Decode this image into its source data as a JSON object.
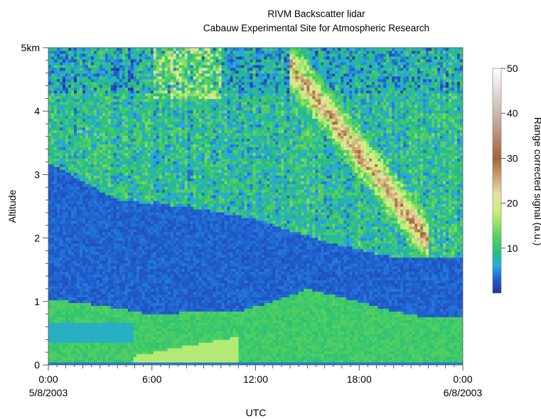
{
  "chart_data": {
    "type": "heatmap",
    "title": "RIVM Backscatter lidar",
    "subtitle": "Cabauw Experimental Site for Atmospheric Research",
    "xlabel": "UTC",
    "ylabel": "Altitude",
    "x_unit": "hours",
    "xlim": [
      0,
      24
    ],
    "ylim": [
      0,
      5
    ],
    "x_ticks": [
      {
        "value": 0,
        "label": "0:00",
        "sublabel": "5/8/2003"
      },
      {
        "value": 6,
        "label": "6:00",
        "sublabel": ""
      },
      {
        "value": 12,
        "label": "12:00",
        "sublabel": ""
      },
      {
        "value": 18,
        "label": "18:00",
        "sublabel": ""
      },
      {
        "value": 24,
        "label": "0:00",
        "sublabel": "6/8/2003"
      }
    ],
    "y_ticks": [
      {
        "value": 0,
        "label": "0"
      },
      {
        "value": 1,
        "label": "1"
      },
      {
        "value": 2,
        "label": "2"
      },
      {
        "value": 3,
        "label": "3"
      },
      {
        "value": 4,
        "label": "4"
      },
      {
        "value": 5,
        "label": "5km"
      }
    ],
    "colorbar": {
      "label": "Range corrected signal (a.u.)",
      "range": [
        0,
        50
      ],
      "ticks": [
        {
          "value": 10,
          "label": "10"
        },
        {
          "value": 20,
          "label": "20"
        },
        {
          "value": 30,
          "label": "30"
        },
        {
          "value": 40,
          "label": "40"
        },
        {
          "value": 50,
          "label": "50"
        }
      ],
      "colormap": [
        {
          "value": 0,
          "color": "#2a2f96"
        },
        {
          "value": 3,
          "color": "#1f5fd0"
        },
        {
          "value": 6,
          "color": "#2aa7e8"
        },
        {
          "value": 9,
          "color": "#25c07a"
        },
        {
          "value": 13,
          "color": "#5dd35a"
        },
        {
          "value": 18,
          "color": "#c9f07a"
        },
        {
          "value": 22,
          "color": "#e8e0a0"
        },
        {
          "value": 30,
          "color": "#a8623c"
        },
        {
          "value": 40,
          "color": "#c9b8b0"
        },
        {
          "value": 50,
          "color": "#ffffff"
        }
      ]
    },
    "layers": {
      "upper_mixed_layer_top_km": [
        [
          0,
          3.2
        ],
        [
          4,
          2.6
        ],
        [
          8,
          2.5
        ],
        [
          12,
          2.3
        ],
        [
          16,
          1.95
        ],
        [
          20,
          1.7
        ],
        [
          24,
          1.7
        ]
      ],
      "clear_layer_base_km": [
        [
          0,
          1.05
        ],
        [
          4,
          0.9
        ],
        [
          6,
          0.8
        ],
        [
          9,
          0.85
        ],
        [
          11,
          0.85
        ],
        [
          13,
          1.0
        ],
        [
          15,
          1.2
        ],
        [
          18,
          1.0
        ],
        [
          20,
          0.85
        ],
        [
          22,
          0.75
        ],
        [
          24,
          0.75
        ]
      ],
      "boundary_layer_value": 11,
      "clear_layer_value": 2,
      "residual_layer_value": 9,
      "aerosol_plume_peak_value": 30,
      "near_ground_value": 4
    }
  }
}
